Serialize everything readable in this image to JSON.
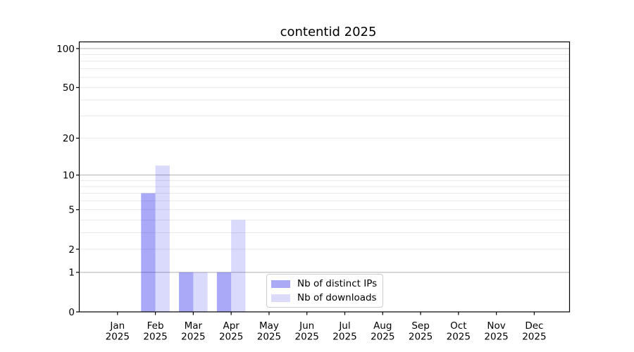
{
  "chart_data": {
    "type": "bar",
    "title": "contentid 2025",
    "categories": [
      "Jan",
      "Feb",
      "Mar",
      "Apr",
      "May",
      "Jun",
      "Jul",
      "Aug",
      "Sep",
      "Oct",
      "Nov",
      "Dec"
    ],
    "x_tick_second_line": "2025",
    "series": [
      {
        "name": "Nb of distinct IPs",
        "values": [
          0,
          7,
          1,
          1,
          0,
          0,
          0,
          0,
          0,
          0,
          0,
          0
        ],
        "color": "#a9a9f5",
        "fill_base": "#0a0aeb",
        "fill_opacity": 0.35
      },
      {
        "name": "Nb of downloads",
        "values": [
          0,
          12,
          1,
          4,
          0,
          0,
          0,
          0,
          0,
          0,
          0,
          0
        ],
        "color": "#dcdcfa",
        "fill_base": "#0a0aeb",
        "fill_opacity": 0.15
      }
    ],
    "y_scale": "log1p",
    "ylim": [
      0,
      112
    ],
    "y_tick_values": [
      0,
      1,
      2,
      5,
      10,
      20,
      50,
      100
    ],
    "y_major_gridlines": [
      1,
      10,
      100
    ],
    "y_minor_gridlines": [
      2,
      3,
      4,
      5,
      6,
      7,
      8,
      9,
      20,
      30,
      40,
      50,
      60,
      70,
      80,
      90
    ],
    "grid": {
      "major_color": "#b0b0b0",
      "minor_color": "#e9e9e9"
    },
    "axis_color": "#000000",
    "text_color": "#000000",
    "legend_position": "lower center inside"
  }
}
